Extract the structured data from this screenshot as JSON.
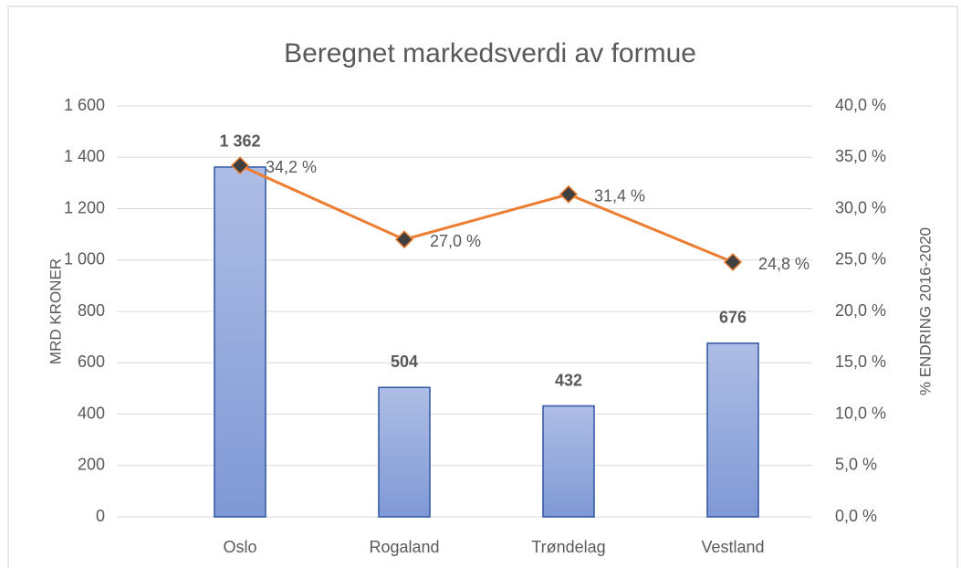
{
  "chart_data": {
    "type": "bar",
    "title": "Beregnet markedsverdi av formue",
    "y_label": "MRD KRONER",
    "y2_label": "% ENDRING 2016-2020",
    "categories": [
      "Oslo",
      "Rogaland",
      "Trøndelag",
      "Vestland"
    ],
    "series": [
      {
        "type": "bar",
        "color": "#8fa6dc",
        "values": [
          1362,
          504,
          432,
          676
        ],
        "value_labels": [
          "1 362",
          "504",
          "432",
          "676"
        ]
      },
      {
        "type": "line",
        "axis": "y2",
        "color": "#ed7d31",
        "values": [
          34.2,
          27.0,
          31.4,
          24.8
        ],
        "value_labels": [
          "34,2 %",
          "27,0 %",
          "31,4 %",
          "24,8 %"
        ]
      }
    ],
    "ylim": [
      0,
      1600
    ],
    "yticks": [
      0,
      200,
      400,
      600,
      800,
      {
        "value": 1000,
        "label": "1 000"
      },
      {
        "value": 1200,
        "label": "1 200"
      },
      {
        "value": 1400,
        "label": "1 400"
      },
      {
        "value": 1600,
        "label": "1 600"
      }
    ],
    "y2lim": [
      0,
      40
    ],
    "y2ticks": [
      {
        "value": 0,
        "label": "0,0 %"
      },
      {
        "value": 5,
        "label": "5,0 %"
      },
      {
        "value": 10,
        "label": "10,0 %"
      },
      {
        "value": 15,
        "label": "15,0 %"
      },
      {
        "value": 20,
        "label": "20,0 %"
      },
      {
        "value": 25,
        "label": "25,0 %"
      },
      {
        "value": 30,
        "label": "30,0 %"
      },
      {
        "value": 35,
        "label": "35,0 %"
      },
      {
        "value": 40,
        "label": "40,0 %"
      }
    ],
    "grid": true
  }
}
